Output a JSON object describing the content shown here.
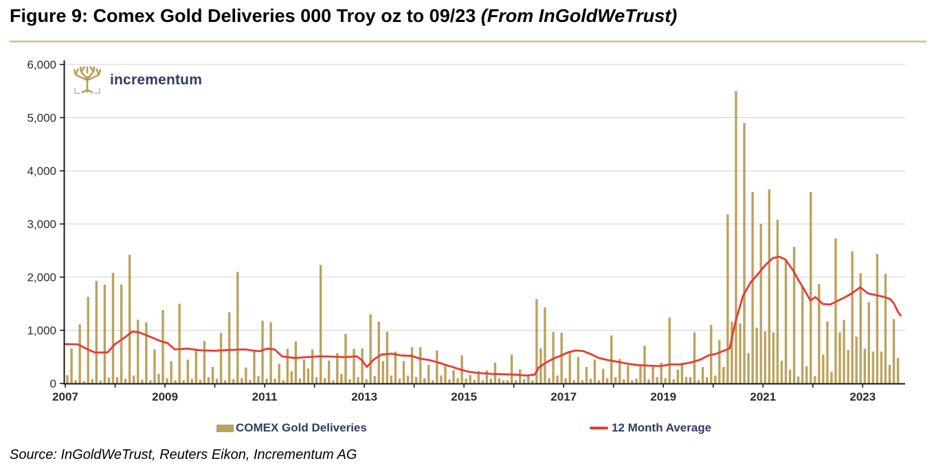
{
  "title": {
    "main": "Figure 9: Comex Gold Deliveries 000 Troy oz to 09/23 ",
    "emphasis": "(From InGoldWeTrust)"
  },
  "logo": {
    "text": "incrementum",
    "icon": "tree-icon",
    "text_color": "#2e3c63",
    "icon_color": "#b89c5a"
  },
  "legend": {
    "bars_label": "COMEX Gold Deliveries",
    "line_label": "12 Month Average"
  },
  "source_line": "Source: InGoldWeTrust, Reuters Eikon, Incrementum AG",
  "colors": {
    "bar": "#bca25c",
    "line": "#e73b30",
    "grid": "#d9d9d9",
    "axis": "#1a1a1a",
    "axis_text": "#2b2b2b",
    "header_rule": "#d9c69c"
  },
  "chart_data": {
    "type": "bar",
    "title": "Comex Gold Deliveries 000 Troy oz to 09/23",
    "unit": "000 Troy oz",
    "x_start": {
      "year": 2007,
      "month": 1
    },
    "x_end": {
      "year": 2023,
      "month": 9
    },
    "xlim": [
      2007,
      2023.85
    ],
    "ylim": [
      0,
      6000
    ],
    "grid": "horizontal",
    "legend_position": "bottom",
    "x_axis": {
      "tick_years": [
        2007,
        2009,
        2011,
        2013,
        2015,
        2017,
        2019,
        2021,
        2023
      ],
      "tick_labels": [
        "2007",
        "2009",
        "2011",
        "2013",
        "2015",
        "2017",
        "2019",
        "2021",
        "2023"
      ],
      "minor_tick_every_year": true
    },
    "y_axis": {
      "tick_values": [
        0,
        1000,
        2000,
        3000,
        4000,
        5000,
        6000
      ],
      "tick_labels": [
        "0",
        "1,000",
        "2,000",
        "3,000",
        "4,000",
        "5,000",
        "6,000"
      ]
    },
    "bar_series": {
      "name": "COMEX Gold Deliveries",
      "color": "#bca25c",
      "frequency": "monthly",
      "monthly_values": [
        155,
        660,
        60,
        1110,
        45,
        1630,
        80,
        1930,
        55,
        1860,
        110,
        2080,
        120,
        1860,
        90,
        2420,
        150,
        1200,
        70,
        1150,
        60,
        640,
        180,
        1380,
        100,
        420,
        60,
        1500,
        60,
        450,
        90,
        640,
        70,
        800,
        120,
        310,
        90,
        950,
        60,
        1340,
        80,
        2100,
        100,
        300,
        70,
        620,
        140,
        1180,
        90,
        1150,
        90,
        370,
        60,
        650,
        230,
        790,
        90,
        450,
        280,
        640,
        120,
        2230,
        100,
        430,
        60,
        570,
        180,
        930,
        80,
        650,
        120,
        660,
        80,
        1300,
        140,
        1160,
        420,
        975,
        150,
        600,
        90,
        420,
        150,
        680,
        120,
        680,
        100,
        350,
        60,
        620,
        150,
        340,
        80,
        250,
        100,
        530,
        90,
        160,
        70,
        235,
        60,
        245,
        90,
        390,
        100,
        60,
        60,
        540,
        60,
        265,
        80,
        160,
        60,
        1590,
        660,
        1430,
        100,
        970,
        150,
        955,
        100,
        580,
        60,
        500,
        60,
        310,
        90,
        450,
        60,
        275,
        100,
        905,
        120,
        460,
        80,
        340,
        60,
        90,
        350,
        710,
        80,
        350,
        120,
        390,
        100,
        1240,
        80,
        260,
        390,
        120,
        120,
        960,
        60,
        310,
        120,
        1100,
        150,
        820,
        310,
        3180,
        1160,
        5500,
        1130,
        4900,
        570,
        3600,
        1050,
        3000,
        980,
        3650,
        960,
        3080,
        430,
        2330,
        260,
        2570,
        130,
        1840,
        320,
        3600,
        140,
        1870,
        545,
        1165,
        220,
        2730,
        960,
        1195,
        630,
        2485,
        880,
        2075,
        655,
        1530,
        600,
        2435,
        600,
        2060,
        350,
        1210,
        480
      ]
    },
    "line_series": {
      "name": "12 Month Average",
      "color": "#e73b30",
      "points": [
        [
          2007.0,
          740
        ],
        [
          2007.25,
          735
        ],
        [
          2007.45,
          640
        ],
        [
          2007.6,
          580
        ],
        [
          2007.85,
          585
        ],
        [
          2008.0,
          740
        ],
        [
          2008.2,
          870
        ],
        [
          2008.35,
          980
        ],
        [
          2008.5,
          955
        ],
        [
          2008.7,
          880
        ],
        [
          2008.9,
          800
        ],
        [
          2009.05,
          760
        ],
        [
          2009.2,
          640
        ],
        [
          2009.45,
          655
        ],
        [
          2009.7,
          625
        ],
        [
          2010.0,
          615
        ],
        [
          2010.3,
          630
        ],
        [
          2010.6,
          640
        ],
        [
          2010.9,
          605
        ],
        [
          2011.05,
          655
        ],
        [
          2011.2,
          640
        ],
        [
          2011.35,
          510
        ],
        [
          2011.6,
          480
        ],
        [
          2011.85,
          495
        ],
        [
          2012.1,
          510
        ],
        [
          2012.35,
          505
        ],
        [
          2012.6,
          495
        ],
        [
          2012.85,
          510
        ],
        [
          2012.95,
          440
        ],
        [
          2013.05,
          310
        ],
        [
          2013.2,
          460
        ],
        [
          2013.35,
          545
        ],
        [
          2013.55,
          560
        ],
        [
          2013.75,
          525
        ],
        [
          2013.95,
          520
        ],
        [
          2014.1,
          470
        ],
        [
          2014.3,
          440
        ],
        [
          2014.5,
          390
        ],
        [
          2014.7,
          330
        ],
        [
          2014.9,
          270
        ],
        [
          2015.1,
          220
        ],
        [
          2015.3,
          195
        ],
        [
          2015.55,
          180
        ],
        [
          2015.8,
          172
        ],
        [
          2016.05,
          165
        ],
        [
          2016.25,
          150
        ],
        [
          2016.42,
          165
        ],
        [
          2016.5,
          300
        ],
        [
          2016.65,
          395
        ],
        [
          2016.8,
          470
        ],
        [
          2016.95,
          525
        ],
        [
          2017.1,
          590
        ],
        [
          2017.25,
          620
        ],
        [
          2017.4,
          608
        ],
        [
          2017.55,
          550
        ],
        [
          2017.7,
          480
        ],
        [
          2017.9,
          438
        ],
        [
          2018.1,
          405
        ],
        [
          2018.3,
          368
        ],
        [
          2018.5,
          345
        ],
        [
          2018.7,
          335
        ],
        [
          2018.95,
          328
        ],
        [
          2019.15,
          360
        ],
        [
          2019.35,
          358
        ],
        [
          2019.55,
          395
        ],
        [
          2019.75,
          450
        ],
        [
          2019.9,
          525
        ],
        [
          2020.05,
          555
        ],
        [
          2020.2,
          610
        ],
        [
          2020.33,
          660
        ],
        [
          2020.45,
          1170
        ],
        [
          2020.6,
          1650
        ],
        [
          2020.75,
          1900
        ],
        [
          2020.9,
          2060
        ],
        [
          2021.05,
          2230
        ],
        [
          2021.2,
          2360
        ],
        [
          2021.33,
          2385
        ],
        [
          2021.45,
          2330
        ],
        [
          2021.6,
          2130
        ],
        [
          2021.72,
          1930
        ],
        [
          2021.82,
          1780
        ],
        [
          2021.95,
          1560
        ],
        [
          2022.05,
          1625
        ],
        [
          2022.2,
          1495
        ],
        [
          2022.35,
          1485
        ],
        [
          2022.5,
          1555
        ],
        [
          2022.65,
          1625
        ],
        [
          2022.8,
          1705
        ],
        [
          2022.95,
          1810
        ],
        [
          2023.1,
          1695
        ],
        [
          2023.3,
          1655
        ],
        [
          2023.45,
          1620
        ],
        [
          2023.55,
          1590
        ],
        [
          2023.63,
          1500
        ],
        [
          2023.7,
          1360
        ],
        [
          2023.76,
          1280
        ]
      ]
    }
  }
}
